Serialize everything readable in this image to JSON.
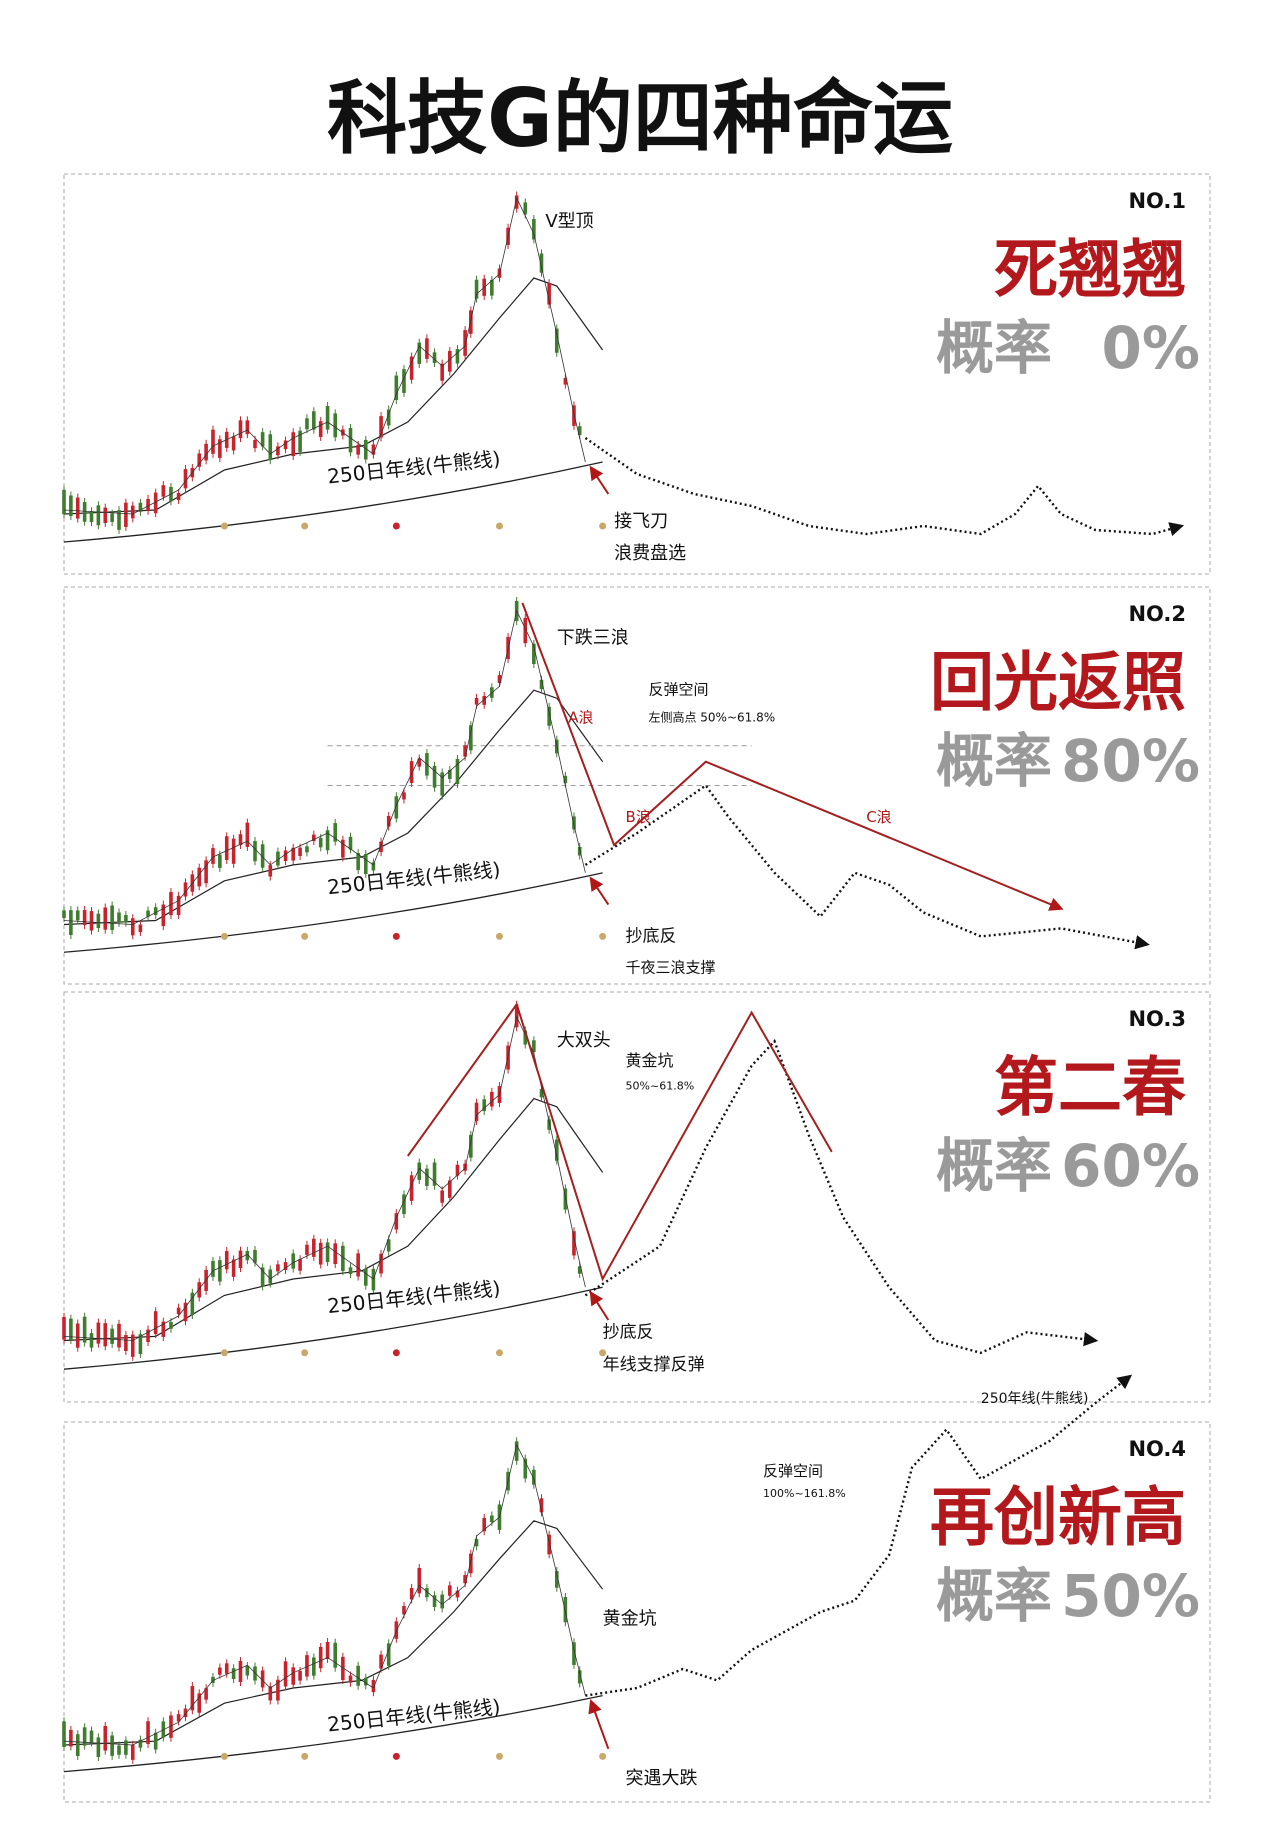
{
  "title": "科技G的四种命运",
  "panels": [
    {
      "no": "NO.1",
      "name": "死翘翘",
      "prob_label": "概率",
      "prob": "0%",
      "annotations": [
        "V型顶",
        "250日年线(牛熊线)",
        "接飞刀",
        "浪费盘选"
      ]
    },
    {
      "no": "NO.2",
      "name": "回光返照",
      "prob_label": "概率",
      "prob": "80%",
      "annotations": [
        "下跌三浪",
        "A浪",
        "B浪",
        "C浪",
        "反弹空间",
        "左侧高点 50%~61.8%",
        "250日年线(牛熊线)",
        "抄底反",
        "千夜三浪支撑"
      ]
    },
    {
      "no": "NO.3",
      "name": "第二春",
      "prob_label": "概率",
      "prob": "60%",
      "annotations": [
        "大双头",
        "黄金坑",
        "50%~61.8%",
        "250日年线(牛熊线)",
        "抄底反",
        "年线支撑反弹"
      ]
    },
    {
      "no": "NO.4",
      "name": "再创新高",
      "prob_label": "概率",
      "prob": "50%",
      "annotations": [
        "黄金坑",
        "反弹空间",
        "100%~161.8%",
        "250年线(牛熊线)",
        "250日年线(牛熊线)",
        "突遇大跌"
      ]
    }
  ]
}
